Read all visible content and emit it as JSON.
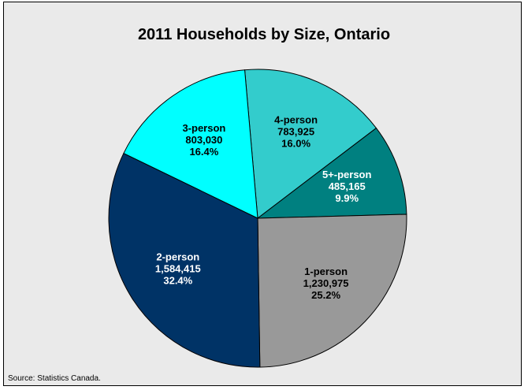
{
  "source": "Source: Statistics Canada.",
  "chart_data": {
    "type": "pie",
    "title": "2011 Households by Size, Ontario",
    "start_angle_deg": -5,
    "direction": "clockwise",
    "slices": [
      {
        "label": "4-person",
        "value_text": "783,925",
        "percent_text": "16.0%",
        "value": 783925,
        "percent": 16.0,
        "color": "#33cccc",
        "text_color": "#000000"
      },
      {
        "label": "5+-person",
        "value_text": "485,165",
        "percent_text": "9.9%",
        "value": 485165,
        "percent": 9.9,
        "color": "#008080",
        "text_color": "#ffffff"
      },
      {
        "label": "1-person",
        "value_text": "1,230,975",
        "percent_text": "25.2%",
        "value": 1230975,
        "percent": 25.2,
        "color": "#999999",
        "text_color": "#000000"
      },
      {
        "label": "2-person",
        "value_text": "1,584,415",
        "percent_text": "32.4%",
        "value": 1584415,
        "percent": 32.4,
        "color": "#003366",
        "text_color": "#ffffff"
      },
      {
        "label": "3-person",
        "value_text": "803,030",
        "percent_text": "16.4%",
        "value": 803030,
        "percent": 16.4,
        "color": "#00ffff",
        "text_color": "#000000"
      }
    ]
  }
}
